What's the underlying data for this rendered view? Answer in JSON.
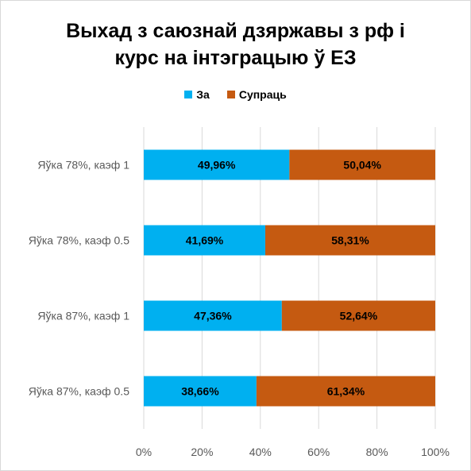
{
  "chart_data": {
    "type": "bar",
    "orientation": "horizontal",
    "stacked": "percent",
    "title_lines": [
      "Выхад з саюзнай дзяржавы з рф і",
      "курс на інтэграцыю ў ЕЗ"
    ],
    "categories": [
      "Яўка 78%, каэф 1",
      "Яўка 78%, каэф 0.5",
      "Яўка 87%, каэф 1",
      "Яўка 87%, каэф 0.5"
    ],
    "series": [
      {
        "name": "За",
        "color": "#00b0f0",
        "values": [
          49.96,
          41.69,
          47.36,
          38.66
        ],
        "labels": [
          "49,96%",
          "41,69%",
          "47,36%",
          "38,66%"
        ]
      },
      {
        "name": "Супраць",
        "color": "#c55a11",
        "values": [
          50.04,
          58.31,
          52.64,
          61.34
        ],
        "labels": [
          "50,04%",
          "58,31%",
          "52,64%",
          "61,34%"
        ]
      }
    ],
    "xlim": [
      0,
      100
    ],
    "xticks": [
      "0%",
      "20%",
      "40%",
      "60%",
      "80%",
      "100%"
    ],
    "legend_position": "top",
    "gridlines": true
  }
}
